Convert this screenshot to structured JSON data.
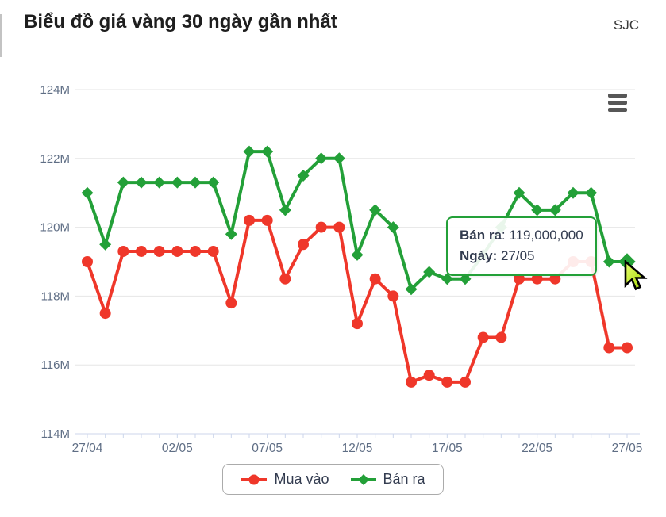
{
  "header": {
    "title": "Biểu đồ giá vàng 30 ngày gần nhất",
    "source": "SJC"
  },
  "chart_data": {
    "type": "line",
    "title": "Biểu đồ giá vàng 30 ngày gần nhất",
    "xlabel": "",
    "ylabel": "",
    "y_unit": "M",
    "ylim": [
      114,
      124
    ],
    "y_tick_step": 2,
    "x_tick_every": 5,
    "grid": true,
    "legend_position": "bottom",
    "categories": [
      "27/04",
      "28/04",
      "29/04",
      "30/04",
      "01/05",
      "02/05",
      "03/05",
      "04/05",
      "05/05",
      "06/05",
      "07/05",
      "08/05",
      "09/05",
      "10/05",
      "11/05",
      "12/05",
      "13/05",
      "14/05",
      "15/05",
      "16/05",
      "17/05",
      "18/05",
      "19/05",
      "20/05",
      "21/05",
      "22/05",
      "23/05",
      "24/05",
      "25/05",
      "26/05",
      "27/05"
    ],
    "series": [
      {
        "name": "Mua vào",
        "color": "#ef372a",
        "marker": "circle",
        "values": [
          119.0,
          117.5,
          119.3,
          119.3,
          119.3,
          119.3,
          119.3,
          119.3,
          117.8,
          120.2,
          120.2,
          118.5,
          119.5,
          120.0,
          120.0,
          117.2,
          118.5,
          118.0,
          115.5,
          115.7,
          115.5,
          115.5,
          116.8,
          116.8,
          118.5,
          118.5,
          118.5,
          119.0,
          119.0,
          116.5,
          116.5
        ]
      },
      {
        "name": "Bán ra",
        "color": "#23a038",
        "marker": "diamond",
        "values": [
          121.0,
          119.5,
          121.3,
          121.3,
          121.3,
          121.3,
          121.3,
          121.3,
          119.8,
          122.2,
          122.2,
          120.5,
          121.5,
          122.0,
          122.0,
          119.2,
          120.5,
          120.0,
          118.2,
          118.7,
          118.5,
          118.5,
          119.2,
          120.0,
          121.0,
          120.5,
          120.5,
          121.0,
          121.0,
          119.0,
          119.0
        ]
      }
    ],
    "hovered_point": {
      "series": "Bán ra",
      "category": "27/05",
      "value": 119.0
    }
  },
  "tooltip": {
    "label": "Bán ra",
    "separator": ": ",
    "value": "119,000,000",
    "date_label": "Ngày:",
    "date_value": " 27/05"
  },
  "colors": {
    "grid_line": "#e6e6e6",
    "axis_line": "#ccd6eb",
    "axis_label": "#5f6e85",
    "legend_text": "#333c50",
    "tooltip_border": "#23a038"
  },
  "icons": {
    "export_menu": "hamburger-menu-icon",
    "cursor": "mouse-pointer-icon"
  }
}
